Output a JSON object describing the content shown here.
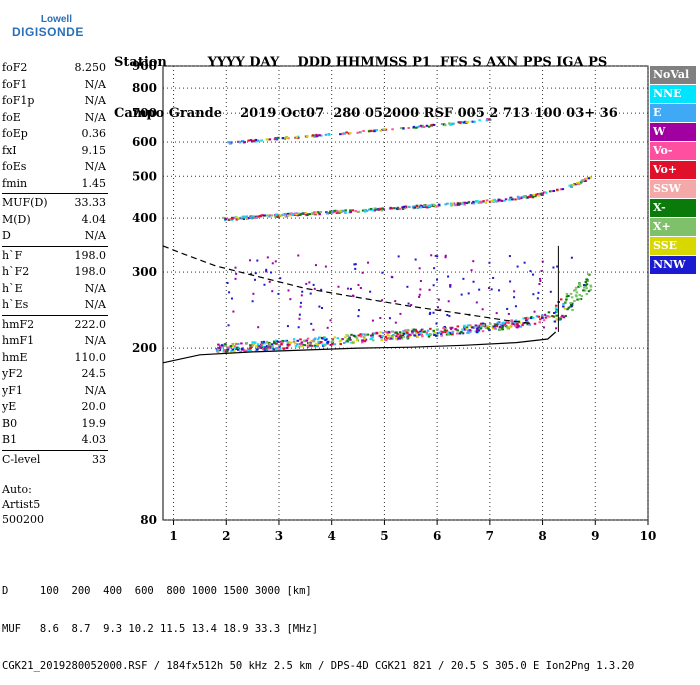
{
  "logo": {
    "line1": "Lowell",
    "line2": "DIGISONDE"
  },
  "header": {
    "labels": "Station         YYYY DAY    DDD HHMMSS P1  FFS S AXN PPS IGA PS",
    "values": "Campo Grande    2019 Oct07  280 052000 RSF 005 2 713 100 03+ 36"
  },
  "params_groups": [
    [
      [
        "foF2",
        "8.250"
      ],
      [
        "foF1",
        "N/A"
      ],
      [
        "foF1p",
        "N/A"
      ],
      [
        "foE",
        "N/A"
      ],
      [
        "foEp",
        "0.36"
      ],
      [
        "fxI",
        "9.15"
      ],
      [
        "foEs",
        "N/A"
      ],
      [
        "fmin",
        "1.45"
      ]
    ],
    [
      [
        "MUF(D)",
        "33.33"
      ],
      [
        "M(D)",
        "4.04"
      ],
      [
        "D",
        "N/A"
      ]
    ],
    [
      [
        "h`F",
        "198.0"
      ],
      [
        "h`F2",
        "198.0"
      ],
      [
        "h`E",
        "N/A"
      ],
      [
        "h`Es",
        "N/A"
      ]
    ],
    [
      [
        "hmF2",
        "222.0"
      ],
      [
        "hmF1",
        "N/A"
      ],
      [
        "hmE",
        "110.0"
      ],
      [
        "yF2",
        "24.5"
      ],
      [
        "yF1",
        "N/A"
      ],
      [
        "yE",
        "20.0"
      ],
      [
        "B0",
        "19.9"
      ],
      [
        "B1",
        "4.03"
      ]
    ],
    [
      [
        "C-level",
        "33"
      ]
    ]
  ],
  "auto": {
    "line1": "Auto:",
    "line2": "Artist5",
    "line3": "500200"
  },
  "legend": [
    {
      "label": "NoVal",
      "bg": "#808080",
      "fg": "#ffffff"
    },
    {
      "label": "NNE",
      "bg": "#00e5ff",
      "fg": "#ffffff"
    },
    {
      "label": "E",
      "bg": "#3fa9f5",
      "fg": "#ffffff"
    },
    {
      "label": "W",
      "bg": "#a000a0",
      "fg": "#ffffff"
    },
    {
      "label": "Vo-",
      "bg": "#ff4fa0",
      "fg": "#ffffff"
    },
    {
      "label": "Vo+",
      "bg": "#e0102a",
      "fg": "#ffffff"
    },
    {
      "label": "SSW",
      "bg": "#f4a9a9",
      "fg": "#ffffff"
    },
    {
      "label": "X-",
      "bg": "#0a7a0a",
      "fg": "#ffffff"
    },
    {
      "label": "X+",
      "bg": "#7fc06a",
      "fg": "#ffffff"
    },
    {
      "label": "SSE",
      "bg": "#d8d800",
      "fg": "#ffffff"
    },
    {
      "label": "NNW",
      "bg": "#1a1ad0",
      "fg": "#ffffff"
    }
  ],
  "footer": {
    "line1": "D     100  200  400  600  800 1000 1500 3000 [km]",
    "line2": "MUF   8.6  8.7  9.3 10.2 11.5 13.4 18.9 33.3 [MHz]",
    "line3": "CGK21_2019280052000.RSF / 184fx512h 50 kHz 2.5 km / DPS-4D CGK21 821 / 20.5 S 305.0 E Ion2Png 1.3.20"
  },
  "chart_data": {
    "type": "scatter",
    "xlim": [
      0.8,
      10
    ],
    "ylim": [
      80,
      900
    ],
    "xlabel": "",
    "ylabel": "",
    "x_ticks": [
      1,
      2,
      3,
      4,
      5,
      6,
      7,
      8,
      9,
      10
    ],
    "y_ticks": [
      80,
      200,
      300,
      400,
      500,
      600,
      700,
      800,
      900
    ],
    "y_scale": "log",
    "traces": [
      {
        "name": "F-trace O",
        "x": [
          1.8,
          2.5,
          3.5,
          4.5,
          5.5,
          6.5,
          7.5,
          8.0,
          8.3,
          8.6,
          8.9
        ],
        "y": [
          200,
          203,
          207,
          212,
          217,
          222,
          229,
          236,
          245,
          265,
          290
        ]
      },
      {
        "name": "F-trace 2nd",
        "x": [
          1.9,
          3.0,
          4.0,
          5.0,
          6.0,
          7.0,
          7.8,
          8.2,
          8.6,
          8.9
        ],
        "y": [
          400,
          408,
          415,
          422,
          430,
          440,
          452,
          465,
          480,
          500
        ]
      },
      {
        "name": "F-trace 3rd",
        "x": [
          2.0,
          3.0,
          4.0,
          5.0,
          6.0,
          7.0
        ],
        "y": [
          600,
          615,
          628,
          645,
          660,
          680
        ]
      }
    ],
    "profile_solid": {
      "x": [
        0.8,
        1.5,
        2.5,
        3.5,
        4.5,
        5.5,
        6.5,
        7.5,
        8.1,
        8.25
      ],
      "y": [
        185,
        193,
        196,
        198,
        200,
        201,
        203,
        206,
        210,
        218
      ]
    },
    "profile_dashed": {
      "x": [
        0.8,
        1.2,
        1.8,
        2.5,
        3.5,
        4.5,
        5.5,
        6.5,
        7.3,
        7.8
      ],
      "y": [
        345,
        330,
        310,
        295,
        275,
        262,
        250,
        240,
        232,
        228
      ]
    }
  }
}
